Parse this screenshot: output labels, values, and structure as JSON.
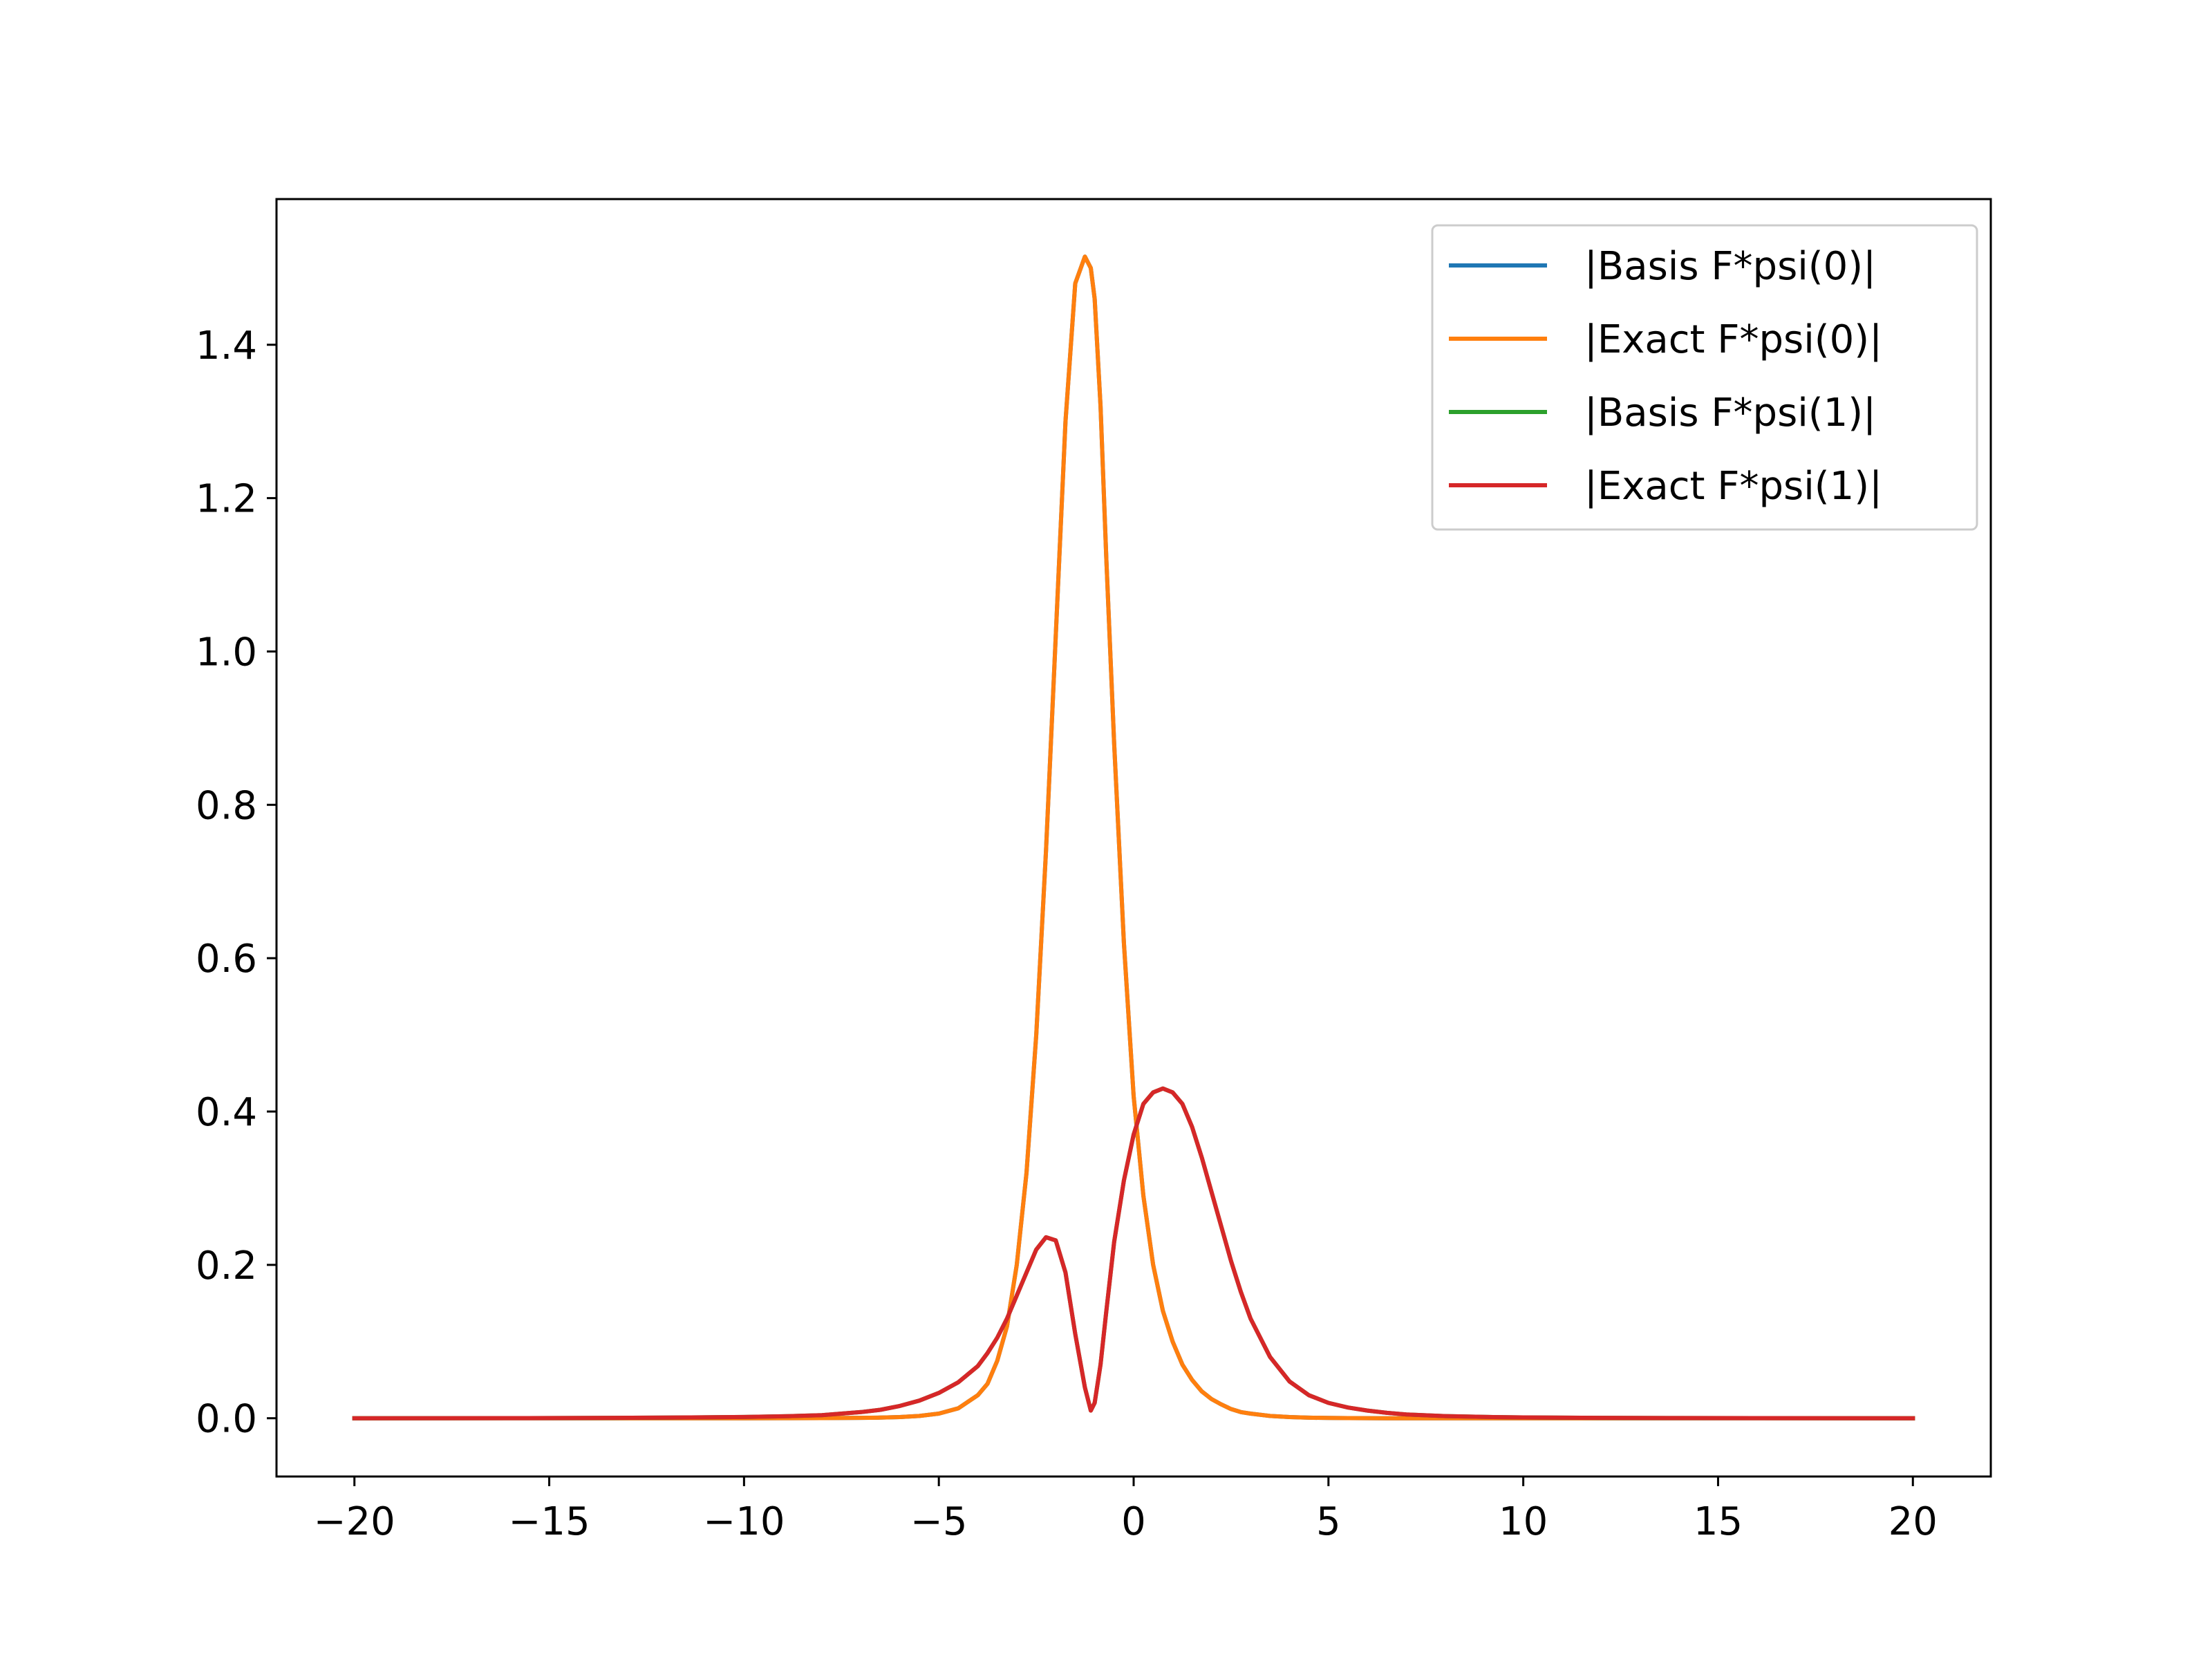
{
  "chart_data": {
    "type": "line",
    "title": "",
    "xlabel": "",
    "ylabel": "",
    "xlim": [
      -22,
      22
    ],
    "ylim": [
      -0.076,
      1.59
    ],
    "x_ticks": [
      -20,
      -15,
      -10,
      -5,
      0,
      5,
      10,
      15,
      20
    ],
    "x_tick_labels": [
      "−20",
      "−15",
      "−10",
      "−5",
      "0",
      "5",
      "10",
      "15",
      "20"
    ],
    "y_ticks": [
      0.0,
      0.2,
      0.4,
      0.6,
      0.8,
      1.0,
      1.2,
      1.4
    ],
    "y_tick_labels": [
      "0.0",
      "0.2",
      "0.4",
      "0.6",
      "0.8",
      "1.0",
      "1.2",
      "1.4"
    ],
    "grid": false,
    "legend_position": "top-right",
    "x": [
      -20,
      -18,
      -16,
      -14,
      -12,
      -10,
      -9,
      -8,
      -7,
      -6.5,
      -6,
      -5.5,
      -5,
      -4.5,
      -4,
      -3.75,
      -3.5,
      -3.25,
      -3,
      -2.75,
      -2.5,
      -2.25,
      -2,
      -1.75,
      -1.5,
      -1.25,
      -1.1,
      -1.0,
      -0.85,
      -0.7,
      -0.5,
      -0.25,
      0,
      0.25,
      0.5,
      0.75,
      1.0,
      1.25,
      1.5,
      1.75,
      2,
      2.25,
      2.5,
      2.75,
      3,
      3.5,
      4,
      4.5,
      5,
      5.5,
      6,
      6.5,
      7,
      8,
      9,
      10,
      12,
      14,
      16,
      18,
      20
    ],
    "series": [
      {
        "name": "|Basis F*psi(0)|",
        "color": "#1f77b4",
        "values": [
          0,
          0,
          0,
          0,
          0,
          0,
          0.0001,
          0.0002,
          0.0005,
          0.0008,
          0.0015,
          0.003,
          0.006,
          0.013,
          0.03,
          0.045,
          0.075,
          0.12,
          0.2,
          0.32,
          0.5,
          0.74,
          1.02,
          1.3,
          1.48,
          1.515,
          1.5,
          1.46,
          1.32,
          1.12,
          0.88,
          0.62,
          0.42,
          0.29,
          0.2,
          0.14,
          0.1,
          0.07,
          0.05,
          0.035,
          0.025,
          0.018,
          0.012,
          0.008,
          0.006,
          0.003,
          0.0015,
          0.0007,
          0.0004,
          0.0002,
          0.0001,
          0,
          0,
          0,
          0,
          0,
          0,
          0,
          0,
          0,
          0
        ]
      },
      {
        "name": "|Exact F*psi(0)|",
        "color": "#ff7f0e",
        "values": [
          0,
          0,
          0,
          0,
          0,
          0,
          0.0001,
          0.0002,
          0.0005,
          0.0008,
          0.0015,
          0.003,
          0.006,
          0.013,
          0.03,
          0.045,
          0.075,
          0.12,
          0.2,
          0.32,
          0.5,
          0.74,
          1.02,
          1.3,
          1.48,
          1.515,
          1.5,
          1.46,
          1.32,
          1.12,
          0.88,
          0.62,
          0.42,
          0.29,
          0.2,
          0.14,
          0.1,
          0.07,
          0.05,
          0.035,
          0.025,
          0.018,
          0.012,
          0.008,
          0.006,
          0.003,
          0.0015,
          0.0007,
          0.0004,
          0.0002,
          0.0001,
          0,
          0,
          0,
          0,
          0,
          0,
          0,
          0,
          0,
          0
        ]
      },
      {
        "name": "|Basis F*psi(1)|",
        "color": "#2ca02c",
        "values": [
          0,
          0.0001,
          0.0002,
          0.0004,
          0.0008,
          0.0016,
          0.0025,
          0.004,
          0.008,
          0.011,
          0.016,
          0.023,
          0.033,
          0.047,
          0.068,
          0.085,
          0.105,
          0.13,
          0.16,
          0.19,
          0.22,
          0.236,
          0.232,
          0.19,
          0.11,
          0.04,
          0.01,
          0.02,
          0.07,
          0.14,
          0.23,
          0.31,
          0.37,
          0.41,
          0.425,
          0.43,
          0.425,
          0.41,
          0.38,
          0.34,
          0.295,
          0.25,
          0.205,
          0.165,
          0.13,
          0.08,
          0.048,
          0.03,
          0.02,
          0.014,
          0.01,
          0.007,
          0.005,
          0.0028,
          0.0017,
          0.0011,
          0.0005,
          0.0003,
          0.0002,
          0.0001,
          0
        ]
      },
      {
        "name": "|Exact F*psi(1)|",
        "color": "#d62728",
        "values": [
          0,
          0.0001,
          0.0002,
          0.0004,
          0.0008,
          0.0016,
          0.0025,
          0.004,
          0.008,
          0.011,
          0.016,
          0.023,
          0.033,
          0.047,
          0.068,
          0.085,
          0.105,
          0.13,
          0.16,
          0.19,
          0.22,
          0.236,
          0.232,
          0.19,
          0.11,
          0.04,
          0.01,
          0.02,
          0.07,
          0.14,
          0.23,
          0.31,
          0.37,
          0.41,
          0.425,
          0.43,
          0.425,
          0.41,
          0.38,
          0.34,
          0.295,
          0.25,
          0.205,
          0.165,
          0.13,
          0.08,
          0.048,
          0.03,
          0.02,
          0.014,
          0.01,
          0.007,
          0.005,
          0.0028,
          0.0017,
          0.0011,
          0.0005,
          0.0003,
          0.0002,
          0.0001,
          0
        ]
      }
    ]
  }
}
